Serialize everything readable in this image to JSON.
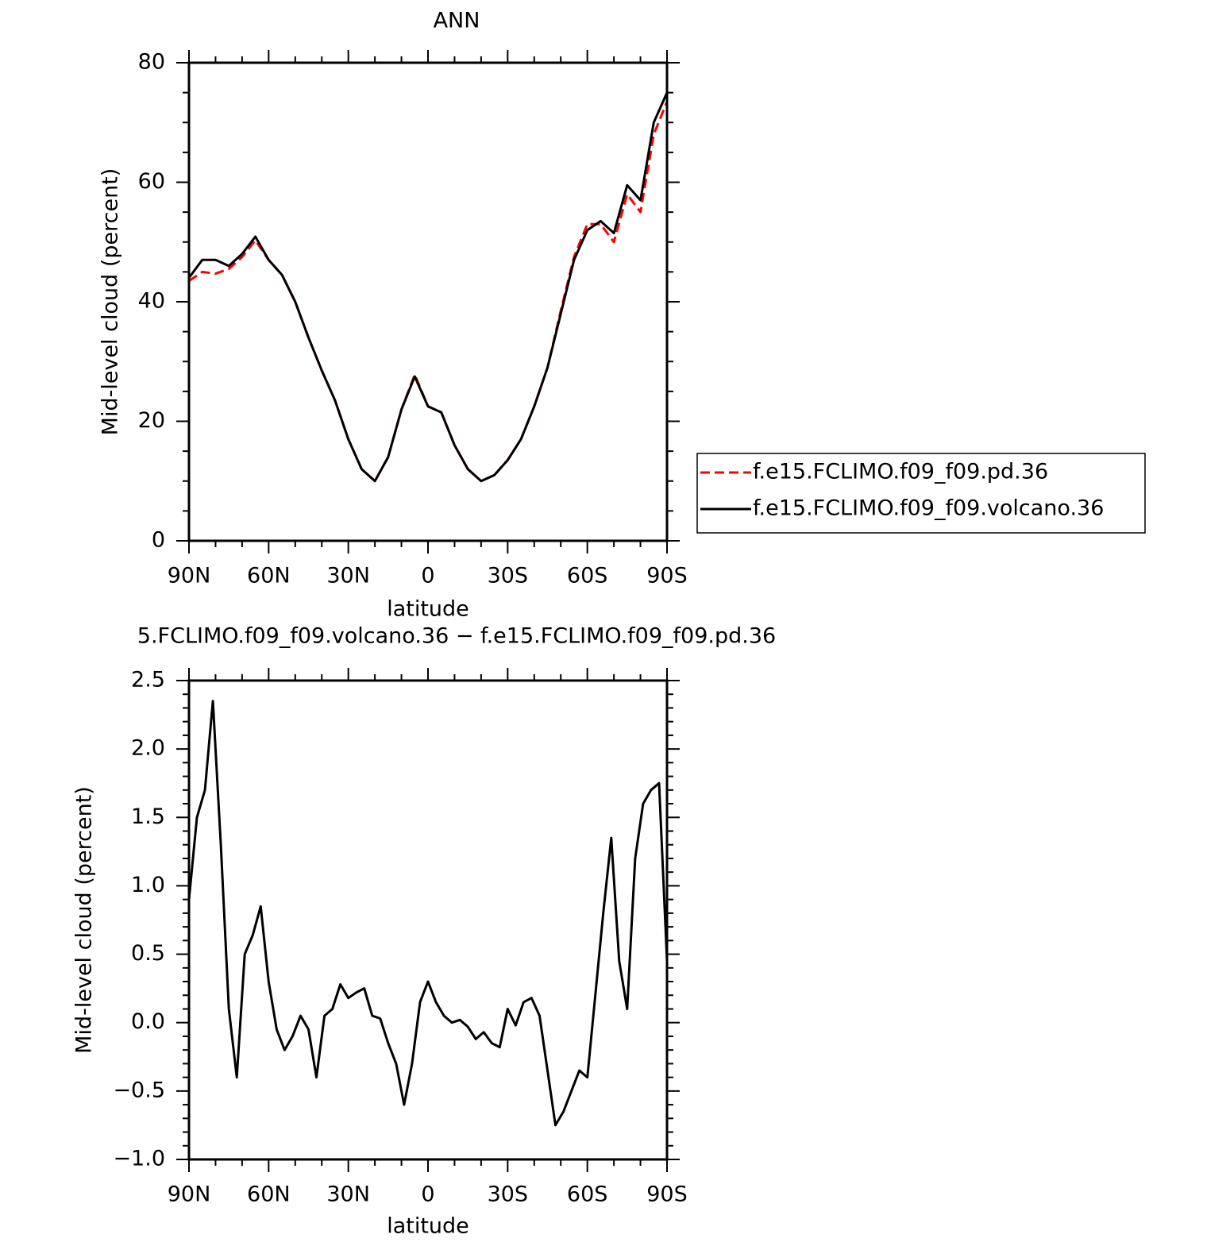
{
  "chart_data": [
    {
      "type": "line",
      "title": "ANN",
      "x_label": "latitude",
      "y_label": "Mid-level cloud (percent)",
      "x": [
        90,
        85,
        80,
        75,
        70,
        65,
        60,
        55,
        50,
        45,
        40,
        35,
        30,
        25,
        20,
        15,
        10,
        5,
        0,
        -5,
        -10,
        -15,
        -20,
        -25,
        -30,
        -35,
        -40,
        -45,
        -50,
        -55,
        -60,
        -65,
        -70,
        -75,
        -80,
        -85,
        -90
      ],
      "xlim": [
        90,
        -90
      ],
      "xticks": [
        {
          "value": 90,
          "label": "90N"
        },
        {
          "value": 60,
          "label": "60N"
        },
        {
          "value": 30,
          "label": "30N"
        },
        0,
        {
          "value": -30,
          "label": "30S"
        },
        {
          "value": -60,
          "label": "60S"
        },
        {
          "value": -90,
          "label": "90S"
        }
      ],
      "ylim": [
        0,
        80
      ],
      "yticks": [
        0,
        20,
        40,
        60,
        80
      ],
      "legend": "outside-right",
      "series": [
        {
          "name": "f.e15.FCLIMO.f09_f09.pd.36",
          "color": "#ff0000",
          "dashed": true,
          "values": [
            43.5,
            45,
            44.7,
            45.5,
            47.5,
            50.3,
            47,
            44.5,
            40,
            34,
            28.5,
            23.5,
            17,
            12,
            10,
            14,
            22,
            27.8,
            22.5,
            21.5,
            16,
            12,
            10,
            11,
            13.5,
            17,
            22.5,
            29,
            38.5,
            47.5,
            53,
            53,
            50,
            58,
            55,
            68,
            73.5
          ]
        },
        {
          "name": "f.e15.FCLIMO.f09_f09.volcano.36",
          "color": "#000000",
          "dashed": false,
          "values": [
            44,
            47,
            47,
            46,
            48,
            50.9,
            47,
            44.5,
            40,
            34,
            28.5,
            23.5,
            17,
            12,
            10,
            14,
            22,
            27.5,
            22.5,
            21.5,
            16,
            12,
            10,
            11,
            13.5,
            17,
            22.5,
            29,
            38,
            47,
            52,
            53.5,
            51.5,
            59.5,
            57,
            70,
            75
          ]
        }
      ]
    },
    {
      "type": "line",
      "title": "5.FCLIMO.f09_f09.volcano.36 − f.e15.FCLIMO.f09_f09.pd.36",
      "x_label": "latitude",
      "y_label": "Mid-level cloud (percent)",
      "x": [
        90,
        87,
        84,
        81,
        78,
        75,
        72,
        69,
        66,
        63,
        60,
        57,
        54,
        51,
        48,
        45,
        42,
        39,
        36,
        33,
        30,
        27,
        24,
        21,
        18,
        15,
        12,
        9,
        6,
        3,
        0,
        -3,
        -6,
        -9,
        -12,
        -15,
        -18,
        -21,
        -24,
        -27,
        -30,
        -33,
        -36,
        -39,
        -42,
        -45,
        -48,
        -51,
        -54,
        -57,
        -60,
        -63,
        -66,
        -69,
        -72,
        -75,
        -78,
        -81,
        -84,
        -87,
        -90
      ],
      "xlim": [
        90,
        -90
      ],
      "xticks": [
        {
          "value": 90,
          "label": "90N"
        },
        {
          "value": 60,
          "label": "60N"
        },
        {
          "value": 30,
          "label": "30N"
        },
        0,
        {
          "value": -30,
          "label": "30S"
        },
        {
          "value": -60,
          "label": "60S"
        },
        {
          "value": -90,
          "label": "90S"
        }
      ],
      "ylim": [
        -1,
        2.5
      ],
      "yticks": [
        {
          "value": -1,
          "label": "−1.0"
        },
        {
          "value": -0.5,
          "label": "−0.5"
        },
        {
          "value": 0,
          "label": "0.0"
        },
        0.5,
        {
          "value": 1,
          "label": "1.0"
        },
        1.5,
        {
          "value": 2,
          "label": "2.0"
        },
        2.5
      ],
      "series": [
        {
          "color": "#000000",
          "dashed": false,
          "values": [
            0.9,
            1.5,
            1.7,
            2.35,
            1.3,
            0.1,
            -0.4,
            0.5,
            0.64,
            0.85,
            0.3,
            -0.05,
            -0.2,
            -0.1,
            0.05,
            -0.05,
            -0.4,
            0.05,
            0.1,
            0.28,
            0.18,
            0.22,
            0.25,
            0.05,
            0.03,
            -0.15,
            -0.3,
            -0.6,
            -0.3,
            0.15,
            0.3,
            0.15,
            0.05,
            0,
            0.02,
            -0.03,
            -0.12,
            -0.07,
            -0.15,
            -0.18,
            0.1,
            -0.02,
            0.15,
            0.18,
            0.05,
            -0.35,
            -0.75,
            -0.65,
            -0.5,
            -0.35,
            -0.4,
            0.2,
            0.8,
            1.35,
            0.45,
            0.1,
            1.2,
            1.6,
            1.7,
            1.75,
            0.45
          ]
        }
      ]
    }
  ]
}
